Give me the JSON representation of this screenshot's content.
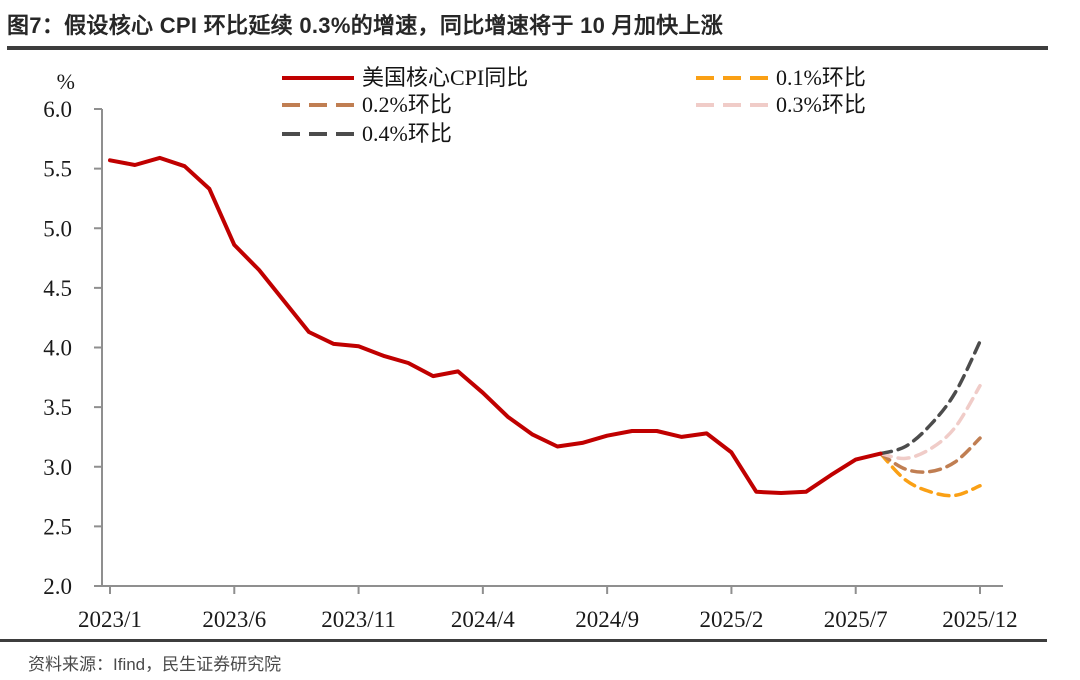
{
  "header": {
    "title": "图7：假设核心 CPI 环比延续 0.3%的增速，同比增速将于 10 月加快上涨"
  },
  "footer": {
    "source": "资料来源：Ifind，民生证券研究院"
  },
  "chart_data": {
    "type": "line",
    "title": "图7：假设核心 CPI 环比延续 0.3%的增速，同比增速将于 10 月加快上涨",
    "ylabel": "%",
    "ylim": [
      2.0,
      6.0
    ],
    "ytick_step": 0.5,
    "ytick_labels": [
      "6.0",
      "5.5",
      "5.0",
      "4.5",
      "4.0",
      "3.5",
      "3.0",
      "2.5",
      "2.0"
    ],
    "xtick_labels": [
      "2023/1",
      "2023/6",
      "2023/11",
      "2024/4",
      "2024/9",
      "2025/2",
      "2025/7",
      "2025/12"
    ],
    "xtick_months": [
      0,
      5,
      10,
      15,
      20,
      25,
      30,
      35
    ],
    "x_months_total": 35,
    "grid": false,
    "legend_position": "top",
    "axis_color": "#8f8f8f",
    "text_color": "#1a1a1a",
    "series": [
      {
        "id": "core-cpi-yoy",
        "name": "美国核心CPI同比",
        "color": "#C00000",
        "style": "solid",
        "start_month": 0,
        "start_label": "2023/1",
        "values": [
          5.57,
          5.53,
          5.59,
          5.52,
          5.33,
          4.86,
          4.65,
          4.39,
          4.13,
          4.03,
          4.01,
          3.93,
          3.87,
          3.76,
          3.8,
          3.62,
          3.42,
          3.27,
          3.17,
          3.2,
          3.26,
          3.3,
          3.3,
          3.25,
          3.28,
          3.12,
          2.79,
          2.78,
          2.79,
          2.93,
          3.06,
          3.11
        ]
      },
      {
        "id": "scenario-0-1pct",
        "name": "0.1%环比",
        "color": "#FAA015",
        "style": "dashed",
        "start_month": 31,
        "start_label": "2025/8",
        "values": [
          3.11,
          2.89,
          2.79,
          2.76,
          2.84
        ]
      },
      {
        "id": "scenario-0-2pct",
        "name": "0.2%环比",
        "color": "#C07E52",
        "style": "dashed",
        "start_month": 31,
        "start_label": "2025/8",
        "values": [
          3.11,
          2.98,
          2.96,
          3.04,
          3.24
        ]
      },
      {
        "id": "scenario-0-3pct",
        "name": "0.3%环比",
        "color": "#F0CCC8",
        "style": "dashed",
        "start_month": 31,
        "start_label": "2025/8",
        "values": [
          3.11,
          3.07,
          3.15,
          3.33,
          3.68
        ]
      },
      {
        "id": "scenario-0-4pct",
        "name": "0.4%环比",
        "color": "#4C4C4C",
        "style": "dashed",
        "start_month": 31,
        "start_label": "2025/8",
        "values": [
          3.11,
          3.17,
          3.35,
          3.62,
          4.05
        ]
      }
    ]
  }
}
